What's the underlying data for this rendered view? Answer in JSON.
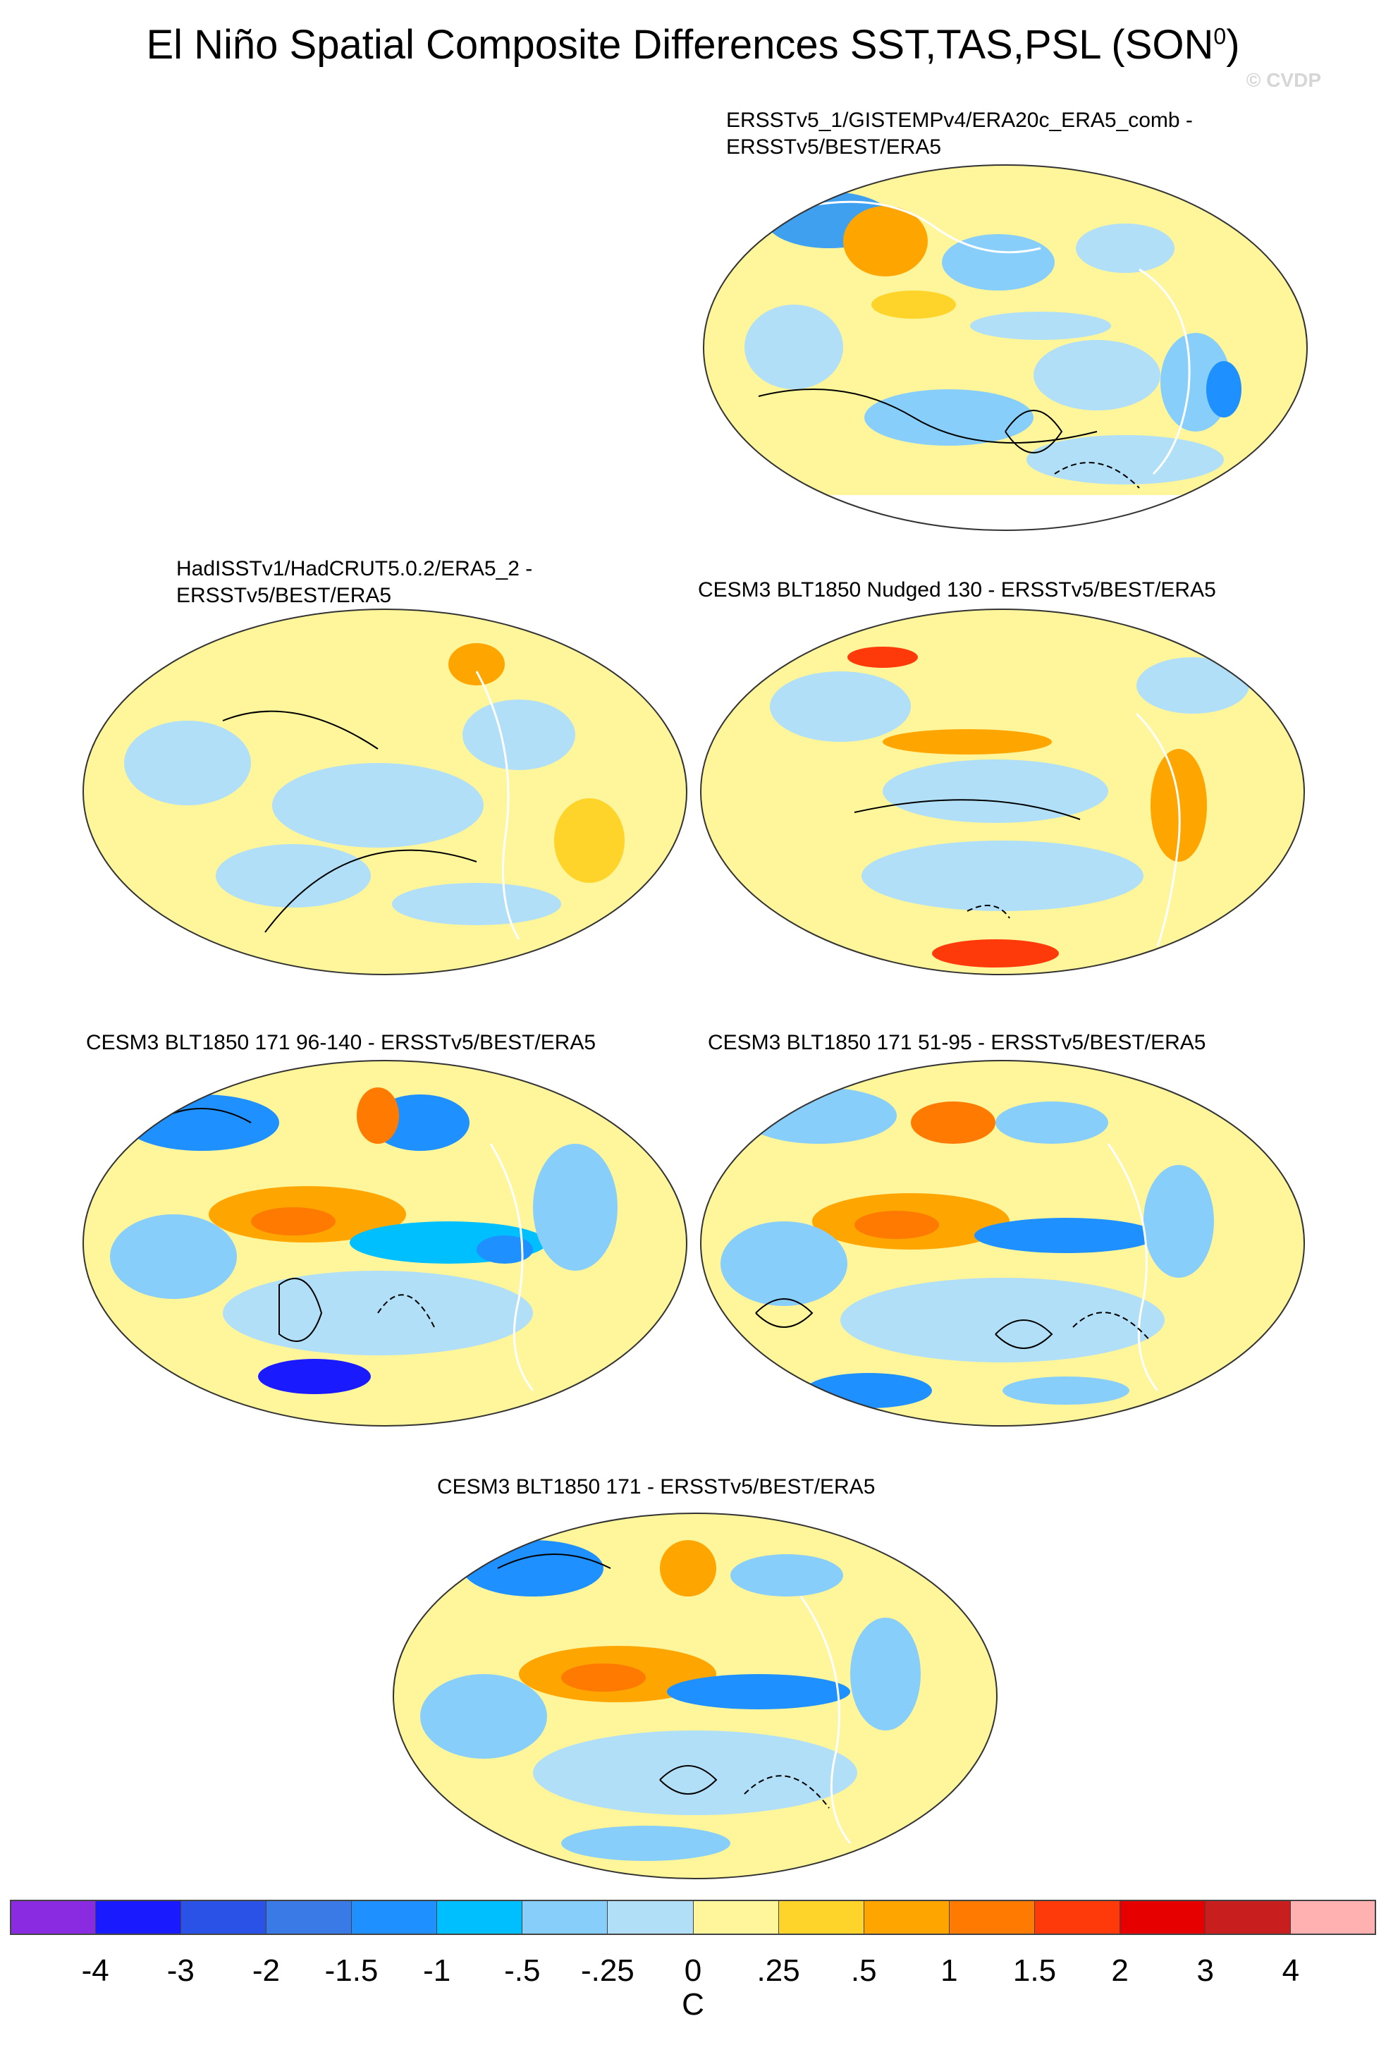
{
  "title": "El Niño Spatial Composite Differences SST,TAS,PSL (SON",
  "title_superscript": "0",
  "title_close": ")",
  "watermark": "© CVDP",
  "panels": [
    {
      "line1": "ERSSTv5_1/GISTEMPv4/ERA20c_ERA5_comb -",
      "line2": "ERSSTv5/BEST/ERA5"
    },
    {
      "line1": "HadISSTv1/HadCRUT5.0.2/ERA5_2 -",
      "line2": "ERSSTv5/BEST/ERA5"
    },
    {
      "line1": "CESM3 BLT1850 Nudged 130 - ERSSTv5/BEST/ERA5",
      "line2": ""
    },
    {
      "line1": "CESM3 BLT1850 171 96-140 - ERSSTv5/BEST/ERA5",
      "line2": ""
    },
    {
      "line1": "CESM3 BLT1850 171 51-95 - ERSSTv5/BEST/ERA5",
      "line2": ""
    },
    {
      "line1": "CESM3 BLT1850 171 - ERSSTv5/BEST/ERA5",
      "line2": ""
    }
  ],
  "colorbar": {
    "colors": [
      "#8a2be2",
      "#1a1aff",
      "#2a52e6",
      "#3a7ae6",
      "#1e90ff",
      "#00bfff",
      "#87cefa",
      "#b0dff7",
      "#fff59a",
      "#ffd42a",
      "#ffa500",
      "#ff7a00",
      "#ff3a0a",
      "#e60000",
      "#c81e1e",
      "#ffb0b0"
    ],
    "labels": [
      "-4",
      "-3",
      "-2",
      "-1.5",
      "-1",
      "-.5",
      "-.25",
      "0",
      ".25",
      ".5",
      "1",
      "1.5",
      "2",
      "3",
      "4"
    ],
    "units": "C"
  },
  "map_colors": {
    "ocean_base": "#fff59a",
    "blue_light": "#b0dff7",
    "blue_mid": "#87cefa",
    "blue_deep": "#1e90ff",
    "orange": "#ffd42a",
    "orange_deep": "#ffa500",
    "red": "#ff3a0a",
    "land_outline": "#ffffff"
  }
}
